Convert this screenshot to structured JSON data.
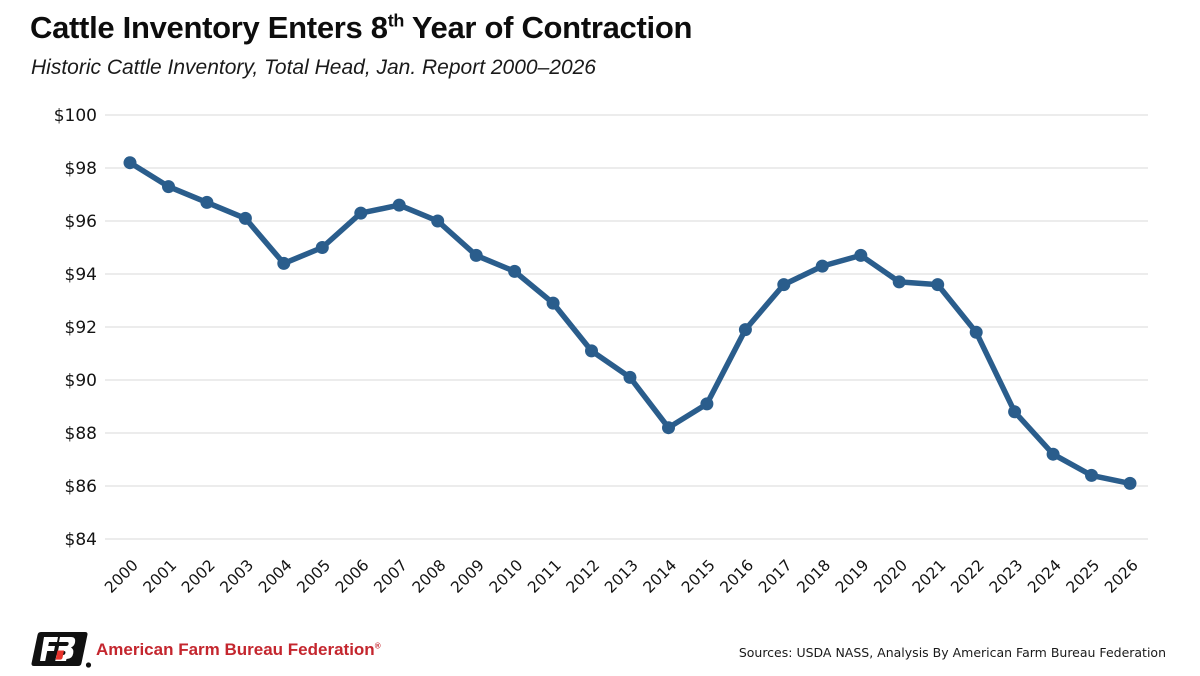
{
  "header": {
    "title_prefix": "Cattle Inventory Enters 8",
    "title_superscript": "th",
    "title_suffix": " Year of Contraction",
    "subtitle": "Historic Cattle Inventory, Total Head, Jan. Report 2000–2026"
  },
  "chart_data": {
    "type": "line",
    "title": "Cattle Inventory Enters 8th Year of Contraction",
    "subtitle": "Historic Cattle Inventory, Total Head, Jan. Report 2000–2026",
    "x_labels": [
      "2000",
      "2001",
      "2002",
      "2003",
      "2004",
      "2005",
      "2006",
      "2007",
      "2008",
      "2009",
      "2010",
      "2011",
      "2012",
      "2013",
      "2014",
      "2015",
      "2016",
      "2017",
      "2018",
      "2019",
      "2020",
      "2021",
      "2022",
      "2023",
      "2024",
      "2025",
      "2026"
    ],
    "values": [
      98.2,
      97.3,
      96.7,
      96.1,
      94.4,
      95.0,
      96.3,
      96.6,
      96.0,
      94.7,
      94.1,
      92.9,
      91.1,
      90.1,
      88.2,
      89.1,
      91.9,
      93.6,
      94.3,
      94.7,
      93.7,
      93.6,
      91.8,
      88.8,
      87.2,
      86.4,
      86.1
    ],
    "y_tick_labels": [
      "$100",
      "$98",
      "$96",
      "$94",
      "$92",
      "$90",
      "$88",
      "$86",
      "$84"
    ],
    "y_tick_values": [
      100,
      98,
      96,
      94,
      92,
      90,
      88,
      86,
      84
    ],
    "ylim": [
      84,
      100
    ],
    "xlabel": "",
    "ylabel": "",
    "grid": "horizontal",
    "legend": "none",
    "line_color": "#2a5d8c",
    "gridline_color": "#d9d9d9",
    "marker": "circle"
  },
  "footer": {
    "logo_icon": "afbf-fb-logo",
    "brand": "American Farm Bureau Federation",
    "brand_mark": "®",
    "sources": "Sources: USDA NASS, Analysis By American Farm Bureau Federation",
    "brand_color": "#c4262e"
  }
}
